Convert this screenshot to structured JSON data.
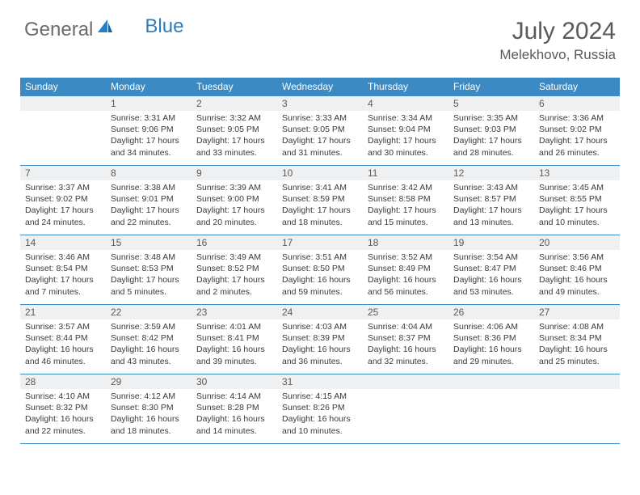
{
  "brand": {
    "part1": "General",
    "part2": "Blue"
  },
  "title": "July 2024",
  "location": "Melekhovo, Russia",
  "colors": {
    "header_bg": "#3b8ac4",
    "header_fg": "#ffffff",
    "daynum_bg": "#eef0f2",
    "rule": "#3b8ac4",
    "text": "#333333",
    "title": "#5a5a5a"
  },
  "weekdays": [
    "Sunday",
    "Monday",
    "Tuesday",
    "Wednesday",
    "Thursday",
    "Friday",
    "Saturday"
  ],
  "weeks": [
    [
      null,
      {
        "n": "1",
        "sr": "Sunrise: 3:31 AM",
        "ss": "Sunset: 9:06 PM",
        "d1": "Daylight: 17 hours",
        "d2": "and 34 minutes."
      },
      {
        "n": "2",
        "sr": "Sunrise: 3:32 AM",
        "ss": "Sunset: 9:05 PM",
        "d1": "Daylight: 17 hours",
        "d2": "and 33 minutes."
      },
      {
        "n": "3",
        "sr": "Sunrise: 3:33 AM",
        "ss": "Sunset: 9:05 PM",
        "d1": "Daylight: 17 hours",
        "d2": "and 31 minutes."
      },
      {
        "n": "4",
        "sr": "Sunrise: 3:34 AM",
        "ss": "Sunset: 9:04 PM",
        "d1": "Daylight: 17 hours",
        "d2": "and 30 minutes."
      },
      {
        "n": "5",
        "sr": "Sunrise: 3:35 AM",
        "ss": "Sunset: 9:03 PM",
        "d1": "Daylight: 17 hours",
        "d2": "and 28 minutes."
      },
      {
        "n": "6",
        "sr": "Sunrise: 3:36 AM",
        "ss": "Sunset: 9:02 PM",
        "d1": "Daylight: 17 hours",
        "d2": "and 26 minutes."
      }
    ],
    [
      {
        "n": "7",
        "sr": "Sunrise: 3:37 AM",
        "ss": "Sunset: 9:02 PM",
        "d1": "Daylight: 17 hours",
        "d2": "and 24 minutes."
      },
      {
        "n": "8",
        "sr": "Sunrise: 3:38 AM",
        "ss": "Sunset: 9:01 PM",
        "d1": "Daylight: 17 hours",
        "d2": "and 22 minutes."
      },
      {
        "n": "9",
        "sr": "Sunrise: 3:39 AM",
        "ss": "Sunset: 9:00 PM",
        "d1": "Daylight: 17 hours",
        "d2": "and 20 minutes."
      },
      {
        "n": "10",
        "sr": "Sunrise: 3:41 AM",
        "ss": "Sunset: 8:59 PM",
        "d1": "Daylight: 17 hours",
        "d2": "and 18 minutes."
      },
      {
        "n": "11",
        "sr": "Sunrise: 3:42 AM",
        "ss": "Sunset: 8:58 PM",
        "d1": "Daylight: 17 hours",
        "d2": "and 15 minutes."
      },
      {
        "n": "12",
        "sr": "Sunrise: 3:43 AM",
        "ss": "Sunset: 8:57 PM",
        "d1": "Daylight: 17 hours",
        "d2": "and 13 minutes."
      },
      {
        "n": "13",
        "sr": "Sunrise: 3:45 AM",
        "ss": "Sunset: 8:55 PM",
        "d1": "Daylight: 17 hours",
        "d2": "and 10 minutes."
      }
    ],
    [
      {
        "n": "14",
        "sr": "Sunrise: 3:46 AM",
        "ss": "Sunset: 8:54 PM",
        "d1": "Daylight: 17 hours",
        "d2": "and 7 minutes."
      },
      {
        "n": "15",
        "sr": "Sunrise: 3:48 AM",
        "ss": "Sunset: 8:53 PM",
        "d1": "Daylight: 17 hours",
        "d2": "and 5 minutes."
      },
      {
        "n": "16",
        "sr": "Sunrise: 3:49 AM",
        "ss": "Sunset: 8:52 PM",
        "d1": "Daylight: 17 hours",
        "d2": "and 2 minutes."
      },
      {
        "n": "17",
        "sr": "Sunrise: 3:51 AM",
        "ss": "Sunset: 8:50 PM",
        "d1": "Daylight: 16 hours",
        "d2": "and 59 minutes."
      },
      {
        "n": "18",
        "sr": "Sunrise: 3:52 AM",
        "ss": "Sunset: 8:49 PM",
        "d1": "Daylight: 16 hours",
        "d2": "and 56 minutes."
      },
      {
        "n": "19",
        "sr": "Sunrise: 3:54 AM",
        "ss": "Sunset: 8:47 PM",
        "d1": "Daylight: 16 hours",
        "d2": "and 53 minutes."
      },
      {
        "n": "20",
        "sr": "Sunrise: 3:56 AM",
        "ss": "Sunset: 8:46 PM",
        "d1": "Daylight: 16 hours",
        "d2": "and 49 minutes."
      }
    ],
    [
      {
        "n": "21",
        "sr": "Sunrise: 3:57 AM",
        "ss": "Sunset: 8:44 PM",
        "d1": "Daylight: 16 hours",
        "d2": "and 46 minutes."
      },
      {
        "n": "22",
        "sr": "Sunrise: 3:59 AM",
        "ss": "Sunset: 8:42 PM",
        "d1": "Daylight: 16 hours",
        "d2": "and 43 minutes."
      },
      {
        "n": "23",
        "sr": "Sunrise: 4:01 AM",
        "ss": "Sunset: 8:41 PM",
        "d1": "Daylight: 16 hours",
        "d2": "and 39 minutes."
      },
      {
        "n": "24",
        "sr": "Sunrise: 4:03 AM",
        "ss": "Sunset: 8:39 PM",
        "d1": "Daylight: 16 hours",
        "d2": "and 36 minutes."
      },
      {
        "n": "25",
        "sr": "Sunrise: 4:04 AM",
        "ss": "Sunset: 8:37 PM",
        "d1": "Daylight: 16 hours",
        "d2": "and 32 minutes."
      },
      {
        "n": "26",
        "sr": "Sunrise: 4:06 AM",
        "ss": "Sunset: 8:36 PM",
        "d1": "Daylight: 16 hours",
        "d2": "and 29 minutes."
      },
      {
        "n": "27",
        "sr": "Sunrise: 4:08 AM",
        "ss": "Sunset: 8:34 PM",
        "d1": "Daylight: 16 hours",
        "d2": "and 25 minutes."
      }
    ],
    [
      {
        "n": "28",
        "sr": "Sunrise: 4:10 AM",
        "ss": "Sunset: 8:32 PM",
        "d1": "Daylight: 16 hours",
        "d2": "and 22 minutes."
      },
      {
        "n": "29",
        "sr": "Sunrise: 4:12 AM",
        "ss": "Sunset: 8:30 PM",
        "d1": "Daylight: 16 hours",
        "d2": "and 18 minutes."
      },
      {
        "n": "30",
        "sr": "Sunrise: 4:14 AM",
        "ss": "Sunset: 8:28 PM",
        "d1": "Daylight: 16 hours",
        "d2": "and 14 minutes."
      },
      {
        "n": "31",
        "sr": "Sunrise: 4:15 AM",
        "ss": "Sunset: 8:26 PM",
        "d1": "Daylight: 16 hours",
        "d2": "and 10 minutes."
      },
      null,
      null,
      null
    ]
  ]
}
